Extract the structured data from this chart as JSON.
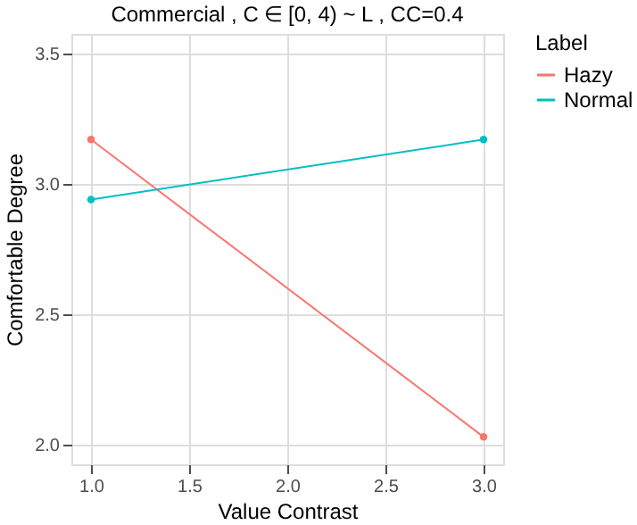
{
  "chart_data": {
    "type": "line",
    "title": "Commercial , C ∈ [0, 4) ~ L , CC=0.4",
    "xlabel": "Value  Contrast",
    "ylabel": "Comfortable  Degree",
    "legend_title": "Label",
    "x": [
      1.0,
      3.0
    ],
    "series": [
      {
        "name": "Hazy",
        "color": "#f8766d",
        "values": [
          3.17,
          2.03
        ]
      },
      {
        "name": "Normal",
        "color": "#00bfc4",
        "values": [
          2.94,
          3.17
        ]
      }
    ],
    "xlim": [
      0.9,
      3.1
    ],
    "ylim": [
      1.925,
      3.575
    ],
    "xticks": [
      {
        "value": 1,
        "label": "1.0"
      },
      1.5,
      {
        "value": 2,
        "label": "2.0"
      },
      2.5,
      {
        "value": 3,
        "label": "3.0"
      }
    ],
    "yticks": [
      {
        "value": 2,
        "label": "2.0"
      },
      2.5,
      {
        "value": 3,
        "label": "3.0"
      },
      3.5
    ],
    "grid": true,
    "legend": "right",
    "marker": "circle",
    "line_style": "solid"
  }
}
